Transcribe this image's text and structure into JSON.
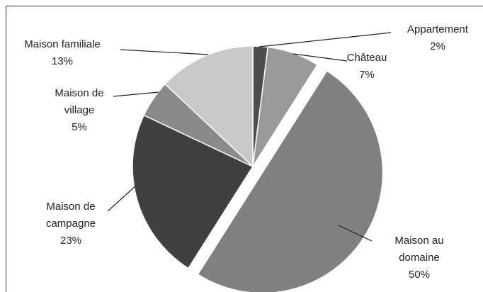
{
  "chart_data": {
    "type": "pie",
    "categories": [
      "Appartement",
      "Château",
      "Maison au domaine",
      "Maison de campagne",
      "Maison de village",
      "Maison familiale"
    ],
    "values": [
      2,
      7,
      50,
      23,
      5,
      13
    ],
    "value_labels": [
      "2%",
      "7%",
      "50%",
      "23%",
      "5%",
      "13%"
    ],
    "colors": [
      "#4d4d4d",
      "#9a9a9a",
      "#808080",
      "#404040",
      "#8a8a8a",
      "#c9c9c9"
    ],
    "explode": [
      false,
      false,
      true,
      false,
      false,
      false
    ]
  }
}
